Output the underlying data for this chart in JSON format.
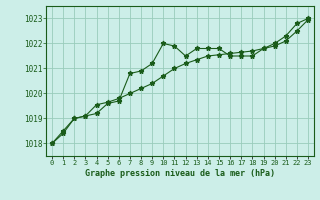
{
  "hours": [
    0,
    1,
    2,
    3,
    4,
    5,
    6,
    7,
    8,
    9,
    10,
    11,
    12,
    13,
    14,
    15,
    16,
    17,
    18,
    19,
    20,
    21,
    22,
    23
  ],
  "pressure_line1": [
    1018.0,
    1018.4,
    1019.0,
    1019.1,
    1019.2,
    1019.6,
    1019.7,
    1020.8,
    1020.9,
    1021.2,
    1022.0,
    1021.9,
    1021.5,
    1021.8,
    1021.8,
    1021.8,
    1021.5,
    1021.5,
    1021.5,
    1021.8,
    1022.0,
    1022.3,
    1022.8,
    1023.0
  ],
  "pressure_line2": [
    1018.0,
    1018.5,
    1019.0,
    1019.1,
    1019.55,
    1019.65,
    1019.8,
    1020.0,
    1020.2,
    1020.4,
    1020.7,
    1021.0,
    1021.2,
    1021.35,
    1021.5,
    1021.55,
    1021.6,
    1021.65,
    1021.7,
    1021.8,
    1021.9,
    1022.1,
    1022.5,
    1022.95
  ],
  "ylim": [
    1017.5,
    1023.5
  ],
  "yticks": [
    1018,
    1019,
    1020,
    1021,
    1022,
    1023
  ],
  "bg_color": "#cceee8",
  "line_color": "#1a5c1a",
  "grid_color": "#99ccbb",
  "xlabel": "Graphe pression niveau de la mer (hPa)",
  "fig_bg": "#cceee8"
}
